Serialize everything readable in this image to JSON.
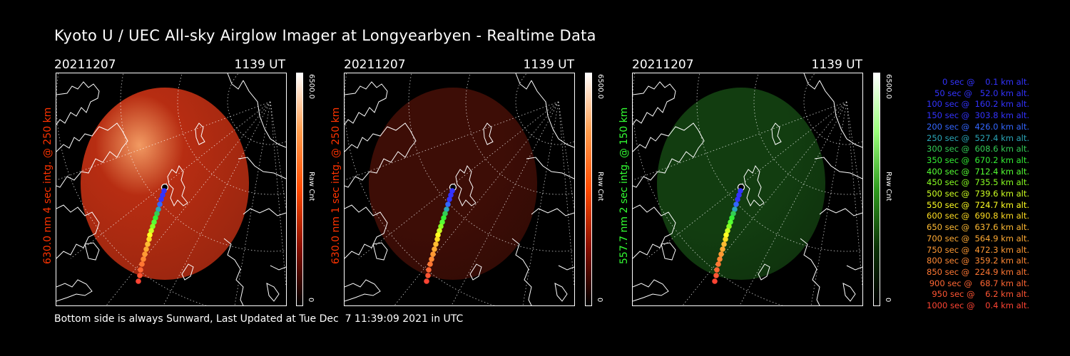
{
  "title": "Kyoto U / UEC All-sky Airglow Imager at Longyearbyen - Realtime Data",
  "panels": [
    {
      "date": "20211207",
      "time": "1139 UT",
      "ylabel": "630.0 nm 4 sec intg. @ 250 km",
      "ylabel_color": "#ff3300",
      "cbar_max": "6500.0",
      "cbar_unit": "Raw Cnt",
      "cbar_min": "0",
      "cbar_colors": [
        "#ffffff",
        "#ff9d4d",
        "#ff4a00",
        "#8a0f00",
        "#000000"
      ],
      "image_color": "#b72d12",
      "image_brightness": "bright"
    },
    {
      "date": "20211207",
      "time": "1139 UT",
      "ylabel": "630.0 nm 1 sec intg. @ 250 km",
      "ylabel_color": "#ff3300",
      "cbar_max": "6500.0",
      "cbar_unit": "Raw Cnt",
      "cbar_min": "0",
      "cbar_colors": [
        "#ffffff",
        "#ff9d4d",
        "#ff4a00",
        "#8a0f00",
        "#000000"
      ],
      "image_color": "#3d0d06",
      "image_brightness": "dim"
    },
    {
      "date": "20211207",
      "time": "1139 UT",
      "ylabel": "557.7 nm 2 sec intg. @ 150 km",
      "ylabel_color": "#33ff33",
      "cbar_max": "6500.0",
      "cbar_unit": "Raw Cnt",
      "cbar_min": "0",
      "cbar_colors": [
        "#ffffff",
        "#9bff7b",
        "#2f9a1e",
        "#0c3307",
        "#000000"
      ],
      "image_color": "#123d10",
      "image_brightness": "dim"
    }
  ],
  "legend": [
    {
      "text": "0 sec @    0.1 km alt.",
      "color": "#3333ff"
    },
    {
      "text": "50 sec @   52.0 km alt.",
      "color": "#3333ff"
    },
    {
      "text": "100 sec @  160.2 km alt.",
      "color": "#3333ff"
    },
    {
      "text": "150 sec @  303.8 km alt.",
      "color": "#3333ff"
    },
    {
      "text": "200 sec @  426.0 km alt.",
      "color": "#3366ff"
    },
    {
      "text": "250 sec @  527.4 km alt.",
      "color": "#2aa6b8"
    },
    {
      "text": "300 sec @  608.6 km alt.",
      "color": "#33cc55"
    },
    {
      "text": "350 sec @  670.2 km alt.",
      "color": "#33ee33"
    },
    {
      "text": "400 sec @  712.4 km alt.",
      "color": "#55ff33"
    },
    {
      "text": "450 sec @  735.5 km alt.",
      "color": "#88ff22"
    },
    {
      "text": "500 sec @  739.6 km alt.",
      "color": "#ccff22"
    },
    {
      "text": "550 sec @  724.7 km alt.",
      "color": "#ffff22"
    },
    {
      "text": "600 sec @  690.8 km alt.",
      "color": "#ffdd22"
    },
    {
      "text": "650 sec @  637.6 km alt.",
      "color": "#ffbb33"
    },
    {
      "text": "700 sec @  564.9 km alt.",
      "color": "#ffaa33"
    },
    {
      "text": "750 sec @  472.3 km alt.",
      "color": "#ff9933"
    },
    {
      "text": "800 sec @  359.2 km alt.",
      "color": "#ff8833"
    },
    {
      "text": "850 sec @  224.9 km alt.",
      "color": "#ff7733"
    },
    {
      "text": "900 sec @   68.7 km alt.",
      "color": "#ff6633"
    },
    {
      "text": "950 sec @    6.2 km alt.",
      "color": "#ff5533"
    },
    {
      "text": "1000 sec @    0.4 km alt.",
      "color": "#ff4433"
    }
  ],
  "footer": "Bottom side is always Sunward, Last Updated at Tue Dec  7 11:39:09 2021 in UTC"
}
